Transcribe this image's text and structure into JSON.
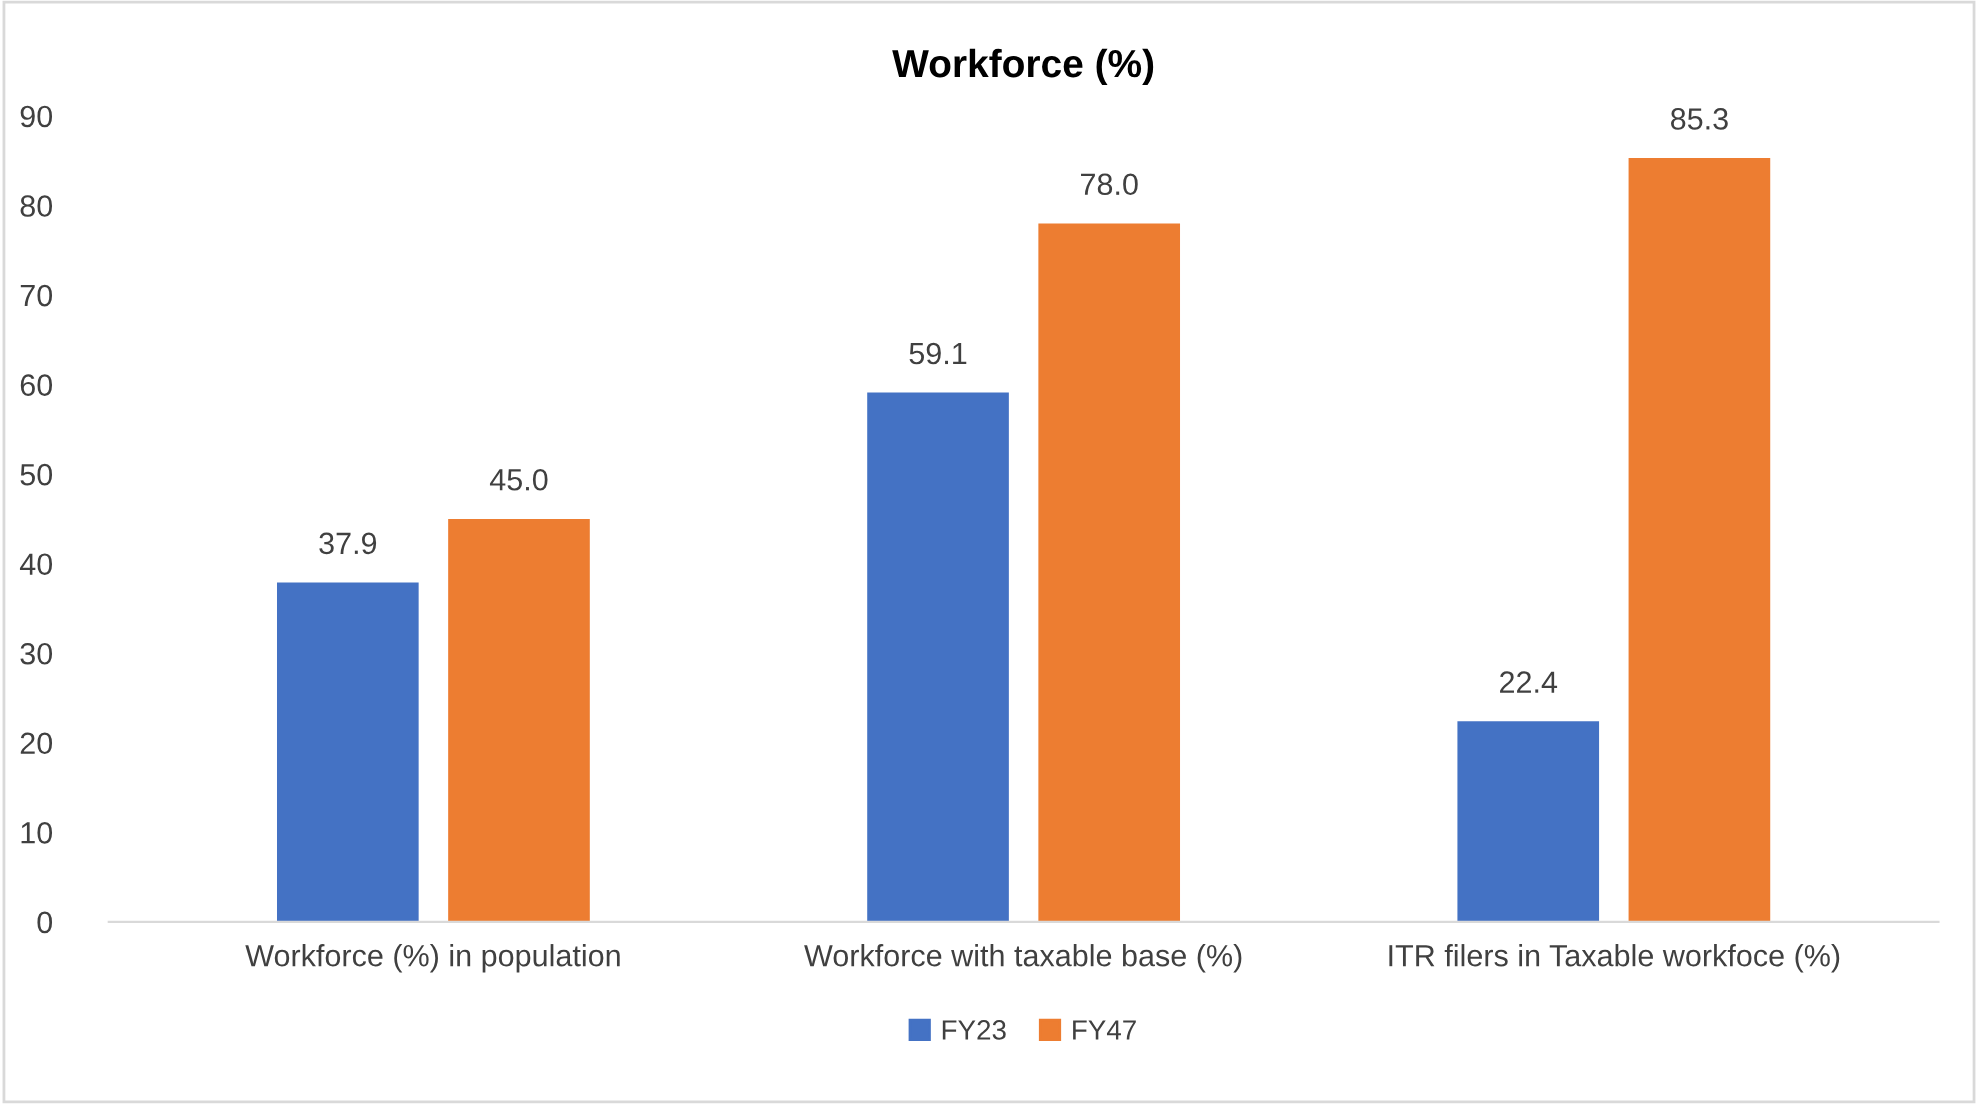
{
  "chart_data": {
    "type": "bar",
    "title": "Workforce (%)",
    "categories": [
      "Workforce (%) in population",
      "Workforce with taxable base (%)",
      "ITR filers in Taxable workfoce (%)"
    ],
    "series": [
      {
        "name": "FY23",
        "color": "#4472c4",
        "values": [
          37.9,
          59.1,
          22.4
        ],
        "value_labels": [
          "37.9",
          "59.1",
          "22.4"
        ]
      },
      {
        "name": "FY47",
        "color": "#ed7d31",
        "values": [
          45.0,
          78.0,
          85.3
        ],
        "value_labels": [
          "45.0",
          "78.0",
          "85.3"
        ]
      }
    ],
    "ylim": [
      0,
      90
    ],
    "yticks": [
      0,
      10,
      20,
      30,
      40,
      50,
      60,
      70,
      80,
      90
    ],
    "grid": false,
    "legend": "bottom"
  }
}
